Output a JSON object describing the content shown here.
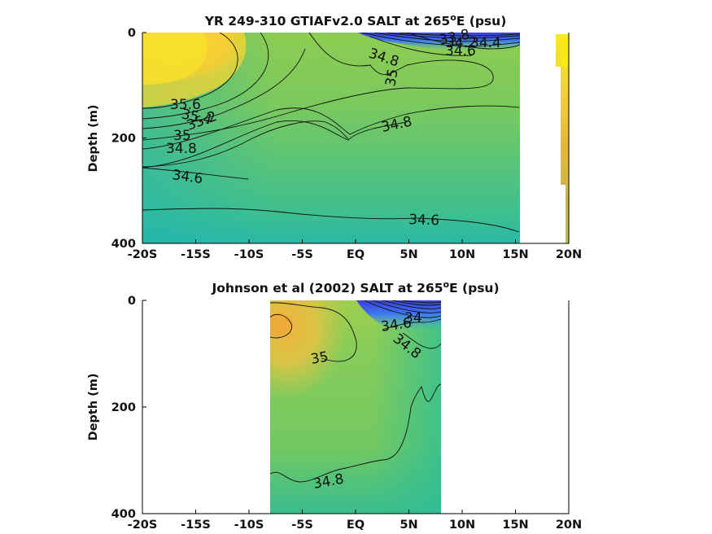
{
  "chart_data": [
    {
      "type": "contour",
      "title_main": "YR 249-310 GTIAFv2.0 SALT at 265",
      "title_sup": "o",
      "title_tail": "E (psu)",
      "ylabel": "Depth (m)",
      "xlim": [
        -20,
        20
      ],
      "ylim": [
        400,
        0
      ],
      "x_ticks": [
        {
          "v": -20,
          "label": "-20S"
        },
        {
          "v": -15,
          "label": "-15S"
        },
        {
          "v": -10,
          "label": "-10S"
        },
        {
          "v": -5,
          "label": "-5S"
        },
        {
          "v": 0,
          "label": "EQ"
        },
        {
          "v": 5,
          "label": "5N"
        },
        {
          "v": 10,
          "label": "10N"
        },
        {
          "v": 15,
          "label": "15N"
        },
        {
          "v": 20,
          "label": "20N"
        }
      ],
      "y_ticks": [
        {
          "v": 0,
          "label": "0"
        },
        {
          "v": 200,
          "label": "200"
        },
        {
          "v": 400,
          "label": "400"
        }
      ],
      "data_extent": {
        "lat": [
          -20,
          15.4
        ],
        "depth": [
          0,
          400
        ]
      },
      "contour_labels": [
        {
          "text": "35.6",
          "lat": -15.2,
          "depth": 135
        },
        {
          "text": "35.4",
          "lat": -13.7,
          "depth": 150
        },
        {
          "text": "35.2",
          "lat": -12.4,
          "depth": 168
        },
        {
          "text": "35",
          "lat": -16.3,
          "depth": 193
        },
        {
          "text": "34.8",
          "lat": -15.9,
          "depth": 218
        },
        {
          "text": "34.6",
          "lat": -14.0,
          "depth": 280
        },
        {
          "text": "34.8",
          "lat": 2.1,
          "depth": 52
        },
        {
          "text": "35",
          "lat": 2.1,
          "depth": 85
        },
        {
          "text": "34.8",
          "lat": 2.1,
          "depth": 172
        },
        {
          "text": "34.6",
          "lat": 3.3,
          "depth": 355
        },
        {
          "text": "33.8",
          "lat": 5.9,
          "depth": 12
        },
        {
          "text": "34.2",
          "lat": 6.5,
          "depth": 18
        },
        {
          "text": "34.4",
          "lat": 7.3,
          "depth": 18
        },
        {
          "text": "34.6",
          "lat": 7.2,
          "depth": 33
        }
      ],
      "colormap": "parula"
    },
    {
      "type": "contour",
      "title_main": "Johnson et al (2002) SALT at 265",
      "title_sup": "o",
      "title_tail": "E (psu)",
      "ylabel": "Depth (m)",
      "xlim": [
        -20,
        20
      ],
      "ylim": [
        400,
        0
      ],
      "x_ticks": [
        {
          "v": -20,
          "label": "-20S"
        },
        {
          "v": -15,
          "label": "-15S"
        },
        {
          "v": -10,
          "label": "-10S"
        },
        {
          "v": -5,
          "label": "-5S"
        },
        {
          "v": 0,
          "label": "EQ"
        },
        {
          "v": 5,
          "label": "5N"
        },
        {
          "v": 10,
          "label": "10N"
        },
        {
          "v": 15,
          "label": "15N"
        },
        {
          "v": 20,
          "label": "20N"
        }
      ],
      "y_ticks": [
        {
          "v": 0,
          "label": "0"
        },
        {
          "v": 200,
          "label": "200"
        },
        {
          "v": 400,
          "label": "400"
        }
      ],
      "data_extent": {
        "lat": [
          -8,
          8
        ],
        "depth": [
          0,
          400
        ]
      },
      "contour_labels": [
        {
          "text": "34",
          "lat": 5.2,
          "depth": 35
        },
        {
          "text": "34.6",
          "lat": 4.2,
          "depth": 52
        },
        {
          "text": "34.8",
          "lat": 5.1,
          "depth": 85
        },
        {
          "text": "35",
          "lat": -3.1,
          "depth": 110
        },
        {
          "text": "34.8",
          "lat": -2.2,
          "depth": 340
        }
      ],
      "colormap": "parula"
    }
  ]
}
